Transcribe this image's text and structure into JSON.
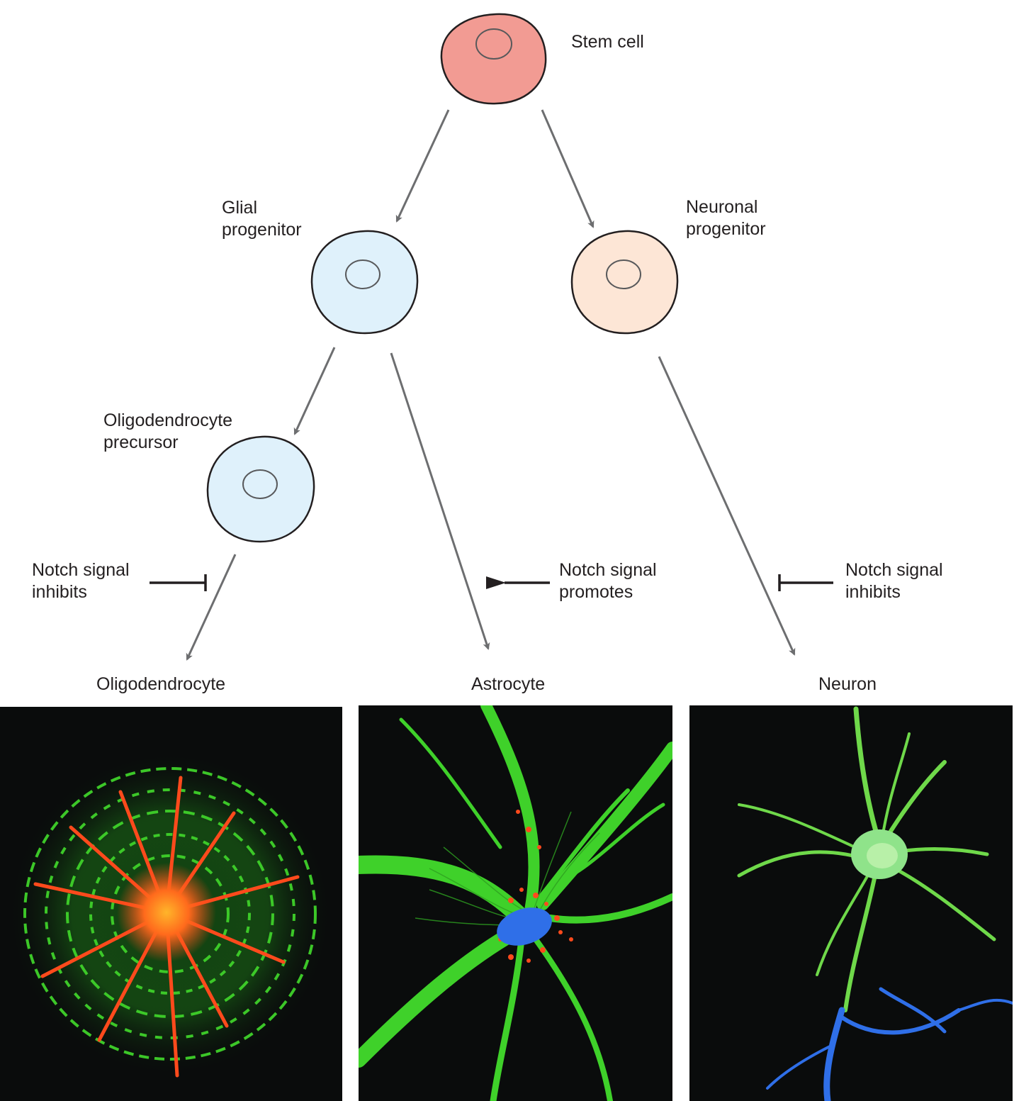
{
  "cells": {
    "stem": {
      "label": "Stem cell",
      "fill": "#f29b93"
    },
    "glial": {
      "line1": "Glial",
      "line2": "progenitor",
      "fill": "#dff1fb"
    },
    "neuronal": {
      "line1": "Neuronal",
      "line2": "progenitor",
      "fill": "#fde6d6"
    },
    "oligo_precursor": {
      "line1": "Oligodendrocyte",
      "line2": "precursor",
      "fill": "#dff1fb"
    }
  },
  "notch": {
    "left": {
      "line1": "Notch signal",
      "line2": "inhibits"
    },
    "middle": {
      "line1": "Notch signal",
      "line2": "promotes"
    },
    "right": {
      "line1": "Notch signal",
      "line2": "inhibits"
    }
  },
  "final_types": {
    "oligodendrocyte": "Oligodendrocyte",
    "astrocyte": "Astrocyte",
    "neuron": "Neuron"
  },
  "colors": {
    "arrow": "#6d6e70",
    "outline": "#231f20",
    "micrograph_background": "#0a0c0c",
    "green_stain": "#3fd12a",
    "red_stain": "#ff4a1c",
    "blue_stain": "#2f6fe8"
  }
}
